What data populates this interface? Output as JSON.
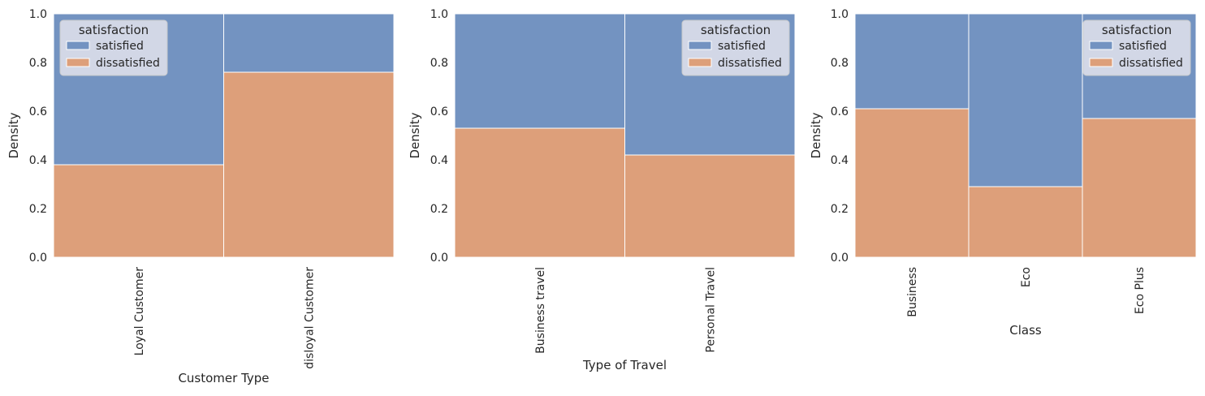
{
  "colors": {
    "satisfied": "#7393c1",
    "dissatisfied": "#dd9f7a",
    "axes_bg": "#eaeaf2",
    "legend_bg": "#d8dbe8"
  },
  "chart_data": [
    {
      "type": "bar",
      "stacked": true,
      "categories": [
        "Loyal Customer",
        "disloyal Customer"
      ],
      "series": [
        {
          "name": "satisfied",
          "values": [
            0.62,
            0.24
          ]
        },
        {
          "name": "dissatisfied",
          "values": [
            0.38,
            0.76
          ]
        }
      ],
      "xlabel": "Customer Type",
      "ylabel": "Density",
      "ylim": [
        0,
        1.0
      ],
      "yticks": [
        "0.0",
        "0.2",
        "0.4",
        "0.6",
        "0.8",
        "1.0"
      ],
      "legend_title": "satisfaction",
      "legend_position": "top-left",
      "grid": true
    },
    {
      "type": "bar",
      "stacked": true,
      "categories": [
        "Business travel",
        "Personal Travel"
      ],
      "series": [
        {
          "name": "satisfied",
          "values": [
            0.47,
            0.58
          ]
        },
        {
          "name": "dissatisfied",
          "values": [
            0.53,
            0.42
          ]
        }
      ],
      "xlabel": "Type of Travel",
      "ylabel": "Density",
      "ylim": [
        0,
        1.0
      ],
      "yticks": [
        "0.0",
        "0.2",
        "0.4",
        "0.6",
        "0.8",
        "1.0"
      ],
      "legend_title": "satisfaction",
      "legend_position": "top-right",
      "grid": true
    },
    {
      "type": "bar",
      "stacked": true,
      "categories": [
        "Business",
        "Eco",
        "Eco Plus"
      ],
      "series": [
        {
          "name": "satisfied",
          "values": [
            0.39,
            0.71,
            0.43
          ]
        },
        {
          "name": "dissatisfied",
          "values": [
            0.61,
            0.29,
            0.57
          ]
        }
      ],
      "xlabel": "Class",
      "ylabel": "Density",
      "ylim": [
        0,
        1.0
      ],
      "yticks": [
        "0.0",
        "0.2",
        "0.4",
        "0.6",
        "0.8",
        "1.0"
      ],
      "legend_title": "satisfaction",
      "legend_position": "top-right",
      "grid": true
    }
  ]
}
